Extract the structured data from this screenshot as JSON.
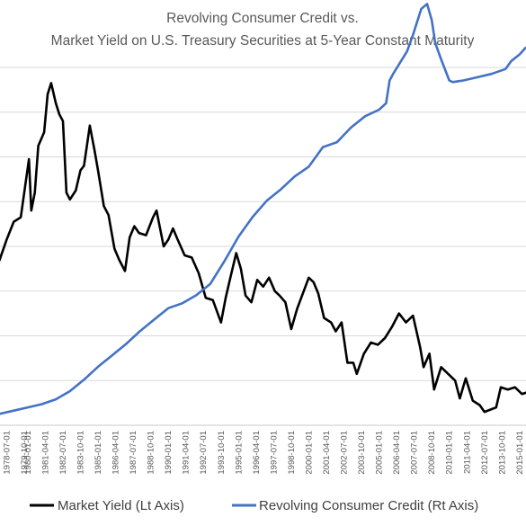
{
  "chart_data": {
    "type": "line",
    "title_line1": "Revolving Consumer Credit  vs.",
    "title_line2": "Market Yield on U.S. Treasury Securities at 5-Year Constant Maturity",
    "x_ticks": [
      "1977-04-01",
      "1978-07-01",
      "1979-10-01",
      "1980-01-01",
      "1981-04-01",
      "1982-07-01",
      "1983-10-01",
      "1985-01-01",
      "1986-04-01",
      "1987-07-01",
      "1988-10-01",
      "1990-01-01",
      "1991-04-01",
      "1992-07-01",
      "1993-10-01",
      "1995-01-01",
      "1996-04-01",
      "1997-07-01",
      "1998-10-01",
      "2000-01-01",
      "2001-04-01",
      "2002-07-01",
      "2003-10-01",
      "2005-01-01",
      "2006-04-01",
      "2007-07-01",
      "2008-10-01",
      "2010-01-01",
      "2011-04-01",
      "2012-07-01",
      "2013-10-01",
      "2015-01-01"
    ],
    "x_range": [
      "1977-01",
      "2016-06"
    ],
    "grid": "horizontal",
    "legend_position": "bottom",
    "series": [
      {
        "name": "Market Yield (Lt Axis)",
        "axis": "left",
        "color": "#000000",
        "ylim": [
          0,
          16
        ],
        "x": [
          "1977-01",
          "1977-07",
          "1978-01",
          "1978-07",
          "1979-01",
          "1979-07",
          "1980-02",
          "1980-04",
          "1980-07",
          "1980-10",
          "1981-03",
          "1981-06",
          "1981-09",
          "1982-01",
          "1982-04",
          "1982-07",
          "1982-10",
          "1983-01",
          "1983-06",
          "1983-10",
          "1984-01",
          "1984-06",
          "1984-10",
          "1985-01",
          "1985-06",
          "1985-10",
          "1986-03",
          "1986-07",
          "1986-12",
          "1987-04",
          "1987-08",
          "1987-12",
          "1988-06",
          "1988-12",
          "1989-03",
          "1989-09",
          "1990-01",
          "1990-05",
          "1990-09",
          "1991-03",
          "1991-09",
          "1992-03",
          "1992-09",
          "1993-03",
          "1993-10",
          "1994-02",
          "1994-06",
          "1994-11",
          "1995-03",
          "1995-07",
          "1995-12",
          "1996-05",
          "1996-10",
          "1997-03",
          "1997-08",
          "1997-12",
          "1998-05",
          "1998-10",
          "1999-03",
          "1999-08",
          "2000-01",
          "2000-05",
          "2000-09",
          "2001-02",
          "2001-08",
          "2001-12",
          "2002-05",
          "2002-10",
          "2003-03",
          "2003-06",
          "2003-12",
          "2004-06",
          "2004-12",
          "2005-06",
          "2005-12",
          "2006-06",
          "2006-12",
          "2007-06",
          "2007-12",
          "2008-03",
          "2008-08",
          "2008-12",
          "2009-06",
          "2009-12",
          "2010-06",
          "2010-10",
          "2011-03",
          "2011-09",
          "2012-03",
          "2012-07",
          "2012-12",
          "2013-05",
          "2013-09",
          "2014-03",
          "2014-09",
          "2015-03",
          "2015-09",
          "2016-03"
        ],
        "values": [
          6.4,
          6.8,
          7.4,
          8.3,
          9.1,
          9.3,
          11.9,
          9.6,
          10.4,
          12.5,
          13.1,
          14.8,
          15.3,
          14.4,
          13.9,
          13.6,
          10.4,
          10.1,
          10.5,
          11.4,
          11.6,
          13.4,
          12.3,
          11.4,
          9.8,
          9.4,
          7.9,
          7.4,
          6.9,
          8.4,
          8.9,
          8.6,
          8.5,
          9.3,
          9.6,
          8.0,
          8.3,
          8.8,
          8.3,
          7.6,
          7.5,
          6.8,
          5.7,
          5.6,
          4.6,
          5.7,
          6.6,
          7.7,
          7.0,
          5.8,
          5.5,
          6.5,
          6.2,
          6.6,
          6.0,
          5.8,
          5.5,
          4.3,
          5.2,
          5.9,
          6.6,
          6.4,
          5.9,
          4.8,
          4.6,
          4.2,
          4.6,
          2.8,
          2.8,
          2.3,
          3.2,
          3.7,
          3.6,
          3.9,
          4.4,
          5.0,
          4.6,
          4.9,
          3.5,
          2.6,
          3.2,
          1.6,
          2.6,
          2.3,
          2.0,
          1.2,
          2.1,
          1.1,
          0.9,
          0.6,
          0.7,
          0.8,
          1.7,
          1.6,
          1.7,
          1.4,
          1.5,
          1.3
        ]
      },
      {
        "name": "Revolving Consumer Credit (Rt Axis)",
        "axis": "right",
        "color": "#4472C4",
        "ylim": [
          0,
          1100
        ],
        "x": [
          "1977-01",
          "1978-01",
          "1979-01",
          "1980-01",
          "1981-01",
          "1982-01",
          "1983-01",
          "1984-01",
          "1985-01",
          "1986-01",
          "1987-01",
          "1988-01",
          "1989-01",
          "1990-01",
          "1991-01",
          "1992-01",
          "1993-01",
          "1994-01",
          "1995-01",
          "1996-01",
          "1997-01",
          "1998-01",
          "1999-01",
          "2000-01",
          "2001-01",
          "2002-01",
          "2003-01",
          "2004-01",
          "2005-01",
          "2005-07",
          "2005-10",
          "2006-01",
          "2007-01",
          "2007-06",
          "2008-01",
          "2008-06",
          "2008-10",
          "2009-01",
          "2009-06",
          "2010-01",
          "2010-04",
          "2011-01",
          "2012-01",
          "2013-01",
          "2014-01",
          "2014-06",
          "2015-01",
          "2015-06",
          "2016-01",
          "2016-06"
        ],
        "values": [
          20,
          35,
          45,
          55,
          65,
          80,
          105,
          140,
          180,
          215,
          250,
          290,
          325,
          360,
          375,
          400,
          435,
          505,
          580,
          640,
          690,
          725,
          765,
          795,
          855,
          870,
          915,
          950,
          970,
          990,
          1060,
          1080,
          1150,
          1200,
          1280,
          1295,
          1245,
          1175,
          1125,
          1060,
          1055,
          1060,
          1070,
          1080,
          1095,
          1120,
          1140,
          1160,
          1170,
          1150
        ]
      }
    ]
  }
}
